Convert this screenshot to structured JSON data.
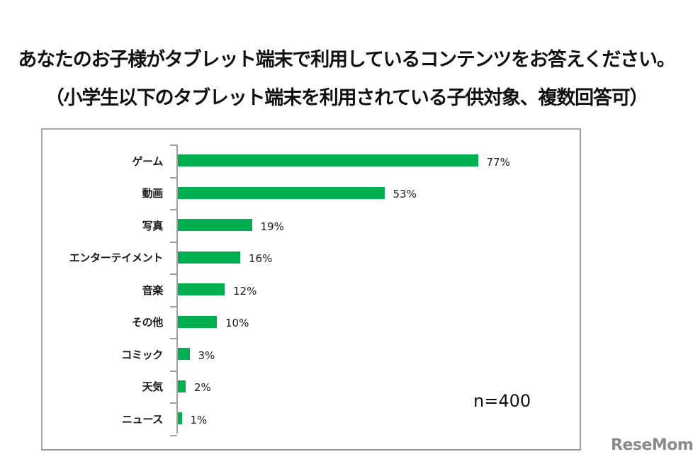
{
  "header": {
    "title_line1": "あなたのお子様がタブレット端末で利用しているコンテンツをお答えください。",
    "title_line2": "（小学生以下のタブレット端末を利用されている子供対象、複数回答可）"
  },
  "note": {
    "sample_size": "n=400"
  },
  "watermark": {
    "text": "ReseMom"
  },
  "colors": {
    "bar": "#00b050",
    "axis": "#a0a0a0",
    "frame": "#a6a6a6"
  },
  "chart_data": {
    "type": "bar",
    "orientation": "horizontal",
    "title": "あなたのお子様がタブレット端末で利用しているコンテンツをお答えください。（小学生以下のタブレット端末を利用されている子供対象、複数回答可）",
    "categories": [
      "ゲーム",
      "動画",
      "写真",
      "エンターテイメント",
      "音楽",
      "その他",
      "コミック",
      "天気",
      "ニュース"
    ],
    "values": [
      77,
      53,
      19,
      16,
      12,
      10,
      3,
      2,
      1
    ],
    "value_labels": [
      "77%",
      "53%",
      "19%",
      "16%",
      "12%",
      "10%",
      "3%",
      "2%",
      "1%"
    ],
    "unit": "%",
    "xlabel": "",
    "ylabel": "",
    "xlim": [
      0,
      100
    ],
    "grid": false,
    "legend": "none",
    "annotation": "n=400"
  }
}
